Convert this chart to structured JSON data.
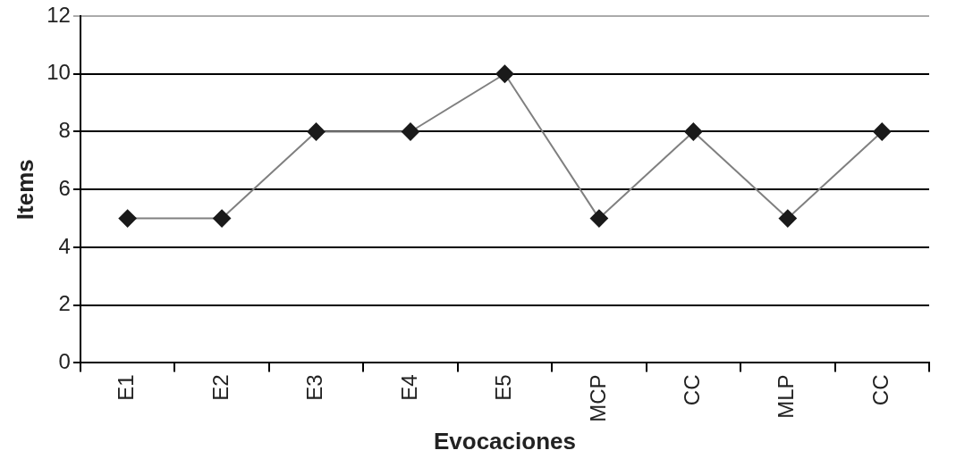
{
  "chart_data": {
    "type": "line",
    "xlabel": "Evocaciones",
    "ylabel": "Items",
    "categories": [
      "E1",
      "E2",
      "E3",
      "E4",
      "E5",
      "MCP",
      "CC",
      "MLP",
      "CC"
    ],
    "series": [
      {
        "color": "#808080",
        "values": [
          5,
          5,
          8,
          8,
          10,
          5,
          8,
          5,
          8
        ]
      }
    ],
    "ylim": [
      0,
      12
    ],
    "yticks": [
      0,
      2,
      4,
      6,
      8,
      10,
      12
    ],
    "grid": "y",
    "marker": "diamond",
    "line_style": "solid",
    "legend": false
  }
}
